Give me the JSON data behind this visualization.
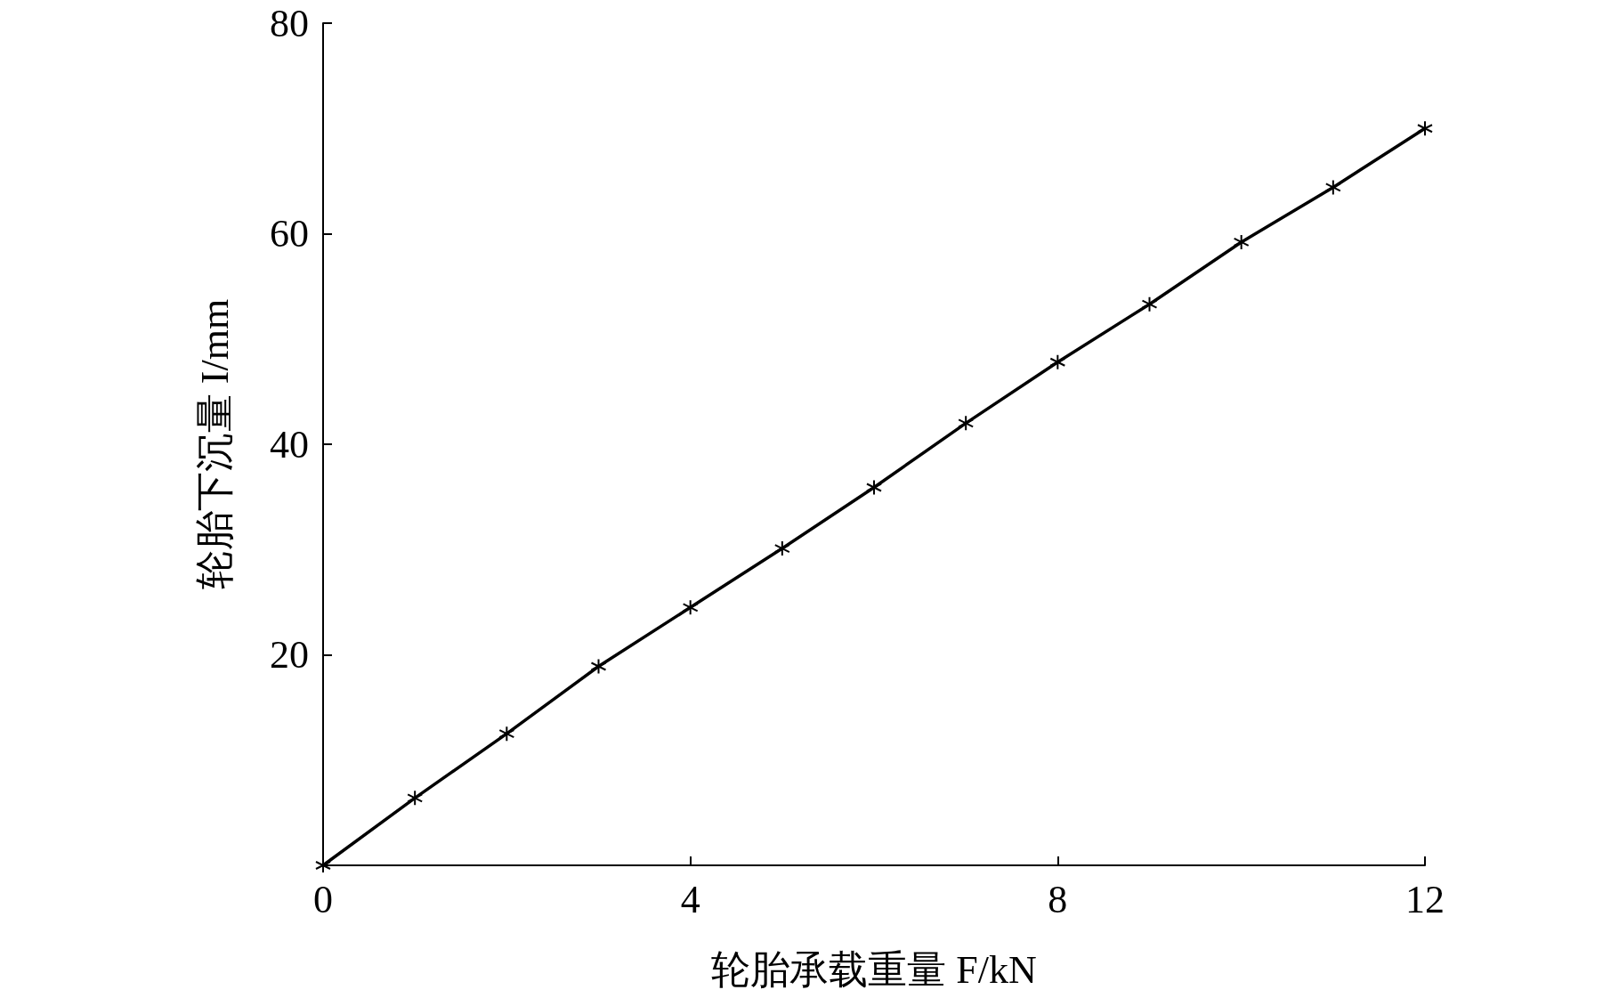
{
  "chart_data": {
    "type": "line",
    "xlabel": "轮胎承载重量 F/kN",
    "ylabel": "轮胎下沉量 I/mm",
    "x": [
      0,
      1,
      2,
      3,
      4,
      5,
      6,
      7,
      8,
      9,
      10,
      11,
      12
    ],
    "series": [
      {
        "color": "#000000",
        "values": [
          0,
          6.4,
          12.5,
          18.9,
          24.5,
          30.1,
          35.9,
          42.0,
          47.8,
          53.3,
          59.2,
          64.4,
          70.0
        ]
      }
    ],
    "xlim": [
      0,
      12
    ],
    "xticks": [
      0,
      4,
      8,
      12
    ],
    "ylim": [
      0,
      80
    ],
    "yticks": [
      {
        "value": 0,
        "label": null
      },
      20,
      40,
      60,
      80
    ],
    "grid": false,
    "marker": "cross",
    "line_style": "solid"
  }
}
